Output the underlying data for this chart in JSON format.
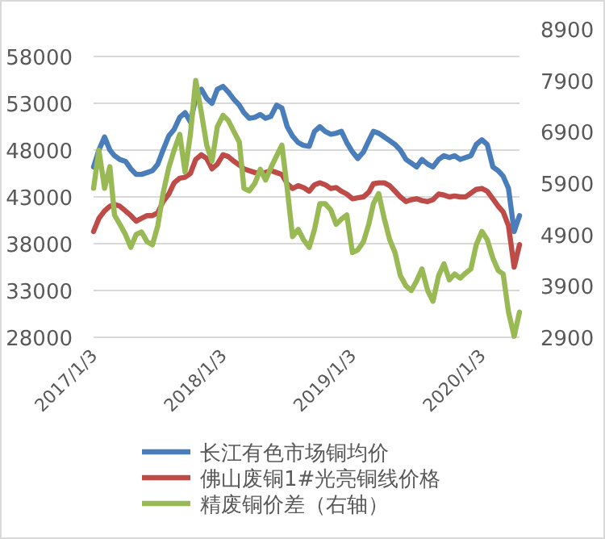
{
  "chart_data": {
    "type": "line",
    "x": [
      "2017-01-03",
      "2017-01-18",
      "2017-02-03",
      "2017-02-18",
      "2017-03-03",
      "2017-03-18",
      "2017-04-03",
      "2017-04-18",
      "2017-05-03",
      "2017-05-18",
      "2017-06-03",
      "2017-06-18",
      "2017-07-03",
      "2017-07-18",
      "2017-08-03",
      "2017-08-18",
      "2017-09-03",
      "2017-09-18",
      "2017-10-03",
      "2017-10-18",
      "2017-11-03",
      "2017-11-18",
      "2017-12-03",
      "2017-12-18",
      "2018-01-03",
      "2018-01-18",
      "2018-02-03",
      "2018-02-18",
      "2018-03-03",
      "2018-03-18",
      "2018-04-03",
      "2018-04-18",
      "2018-05-03",
      "2018-05-18",
      "2018-06-03",
      "2018-06-18",
      "2018-07-03",
      "2018-07-18",
      "2018-08-03",
      "2018-08-18",
      "2018-09-03",
      "2018-09-18",
      "2018-10-03",
      "2018-10-18",
      "2018-11-03",
      "2018-11-18",
      "2018-12-03",
      "2018-12-18",
      "2019-01-03",
      "2019-01-18",
      "2019-02-03",
      "2019-02-18",
      "2019-03-03",
      "2019-03-18",
      "2019-04-03",
      "2019-04-18",
      "2019-05-03",
      "2019-05-18",
      "2019-06-03",
      "2019-06-18",
      "2019-07-03",
      "2019-07-18",
      "2019-08-03",
      "2019-08-18",
      "2019-09-03",
      "2019-09-18",
      "2019-10-03",
      "2019-10-18",
      "2019-11-03",
      "2019-11-18",
      "2019-12-03",
      "2019-12-18",
      "2020-01-03",
      "2020-01-18",
      "2020-02-03",
      "2020-02-18",
      "2020-03-03",
      "2020-03-18",
      "2020-04-03",
      "2020-04-18"
    ],
    "series": [
      {
        "name": "长江有色市场铜均价",
        "color": "#4a7ebb",
        "values": [
          46200,
          48000,
          49400,
          48000,
          47400,
          47000,
          46800,
          46000,
          45400,
          45400,
          45600,
          45800,
          46500,
          48000,
          49500,
          50200,
          51500,
          52000,
          51000,
          53500,
          54500,
          53500,
          53000,
          54500,
          54800,
          54200,
          53400,
          52800,
          52000,
          51400,
          51500,
          51800,
          51400,
          51600,
          52800,
          52500,
          50500,
          49500,
          48800,
          48500,
          48400,
          50000,
          50500,
          50000,
          49700,
          49800,
          50000,
          48800,
          47800,
          47100,
          47800,
          49000,
          50000,
          49800,
          49400,
          49000,
          48600,
          48000,
          47000,
          46600,
          46200,
          47000,
          46500,
          46200,
          47000,
          47400,
          47200,
          47400,
          47000,
          47200,
          47400,
          48600,
          49100,
          48600,
          46200,
          45800,
          45200,
          43900,
          39300,
          41000
        ]
      },
      {
        "name": "佛山废铜1#光亮铜线价格",
        "color": "#be4b48",
        "values": [
          39300,
          40700,
          41500,
          42000,
          42200,
          42000,
          41500,
          41000,
          40400,
          40700,
          41000,
          41000,
          41300,
          42500,
          43300,
          44500,
          45000,
          45100,
          45500,
          47000,
          47500,
          47100,
          46000,
          46500,
          47500,
          47300,
          46800,
          46400,
          46000,
          45800,
          45600,
          45600,
          45600,
          45800,
          45600,
          45400,
          44400,
          43900,
          44200,
          44000,
          43600,
          44300,
          44500,
          44300,
          43900,
          44000,
          43600,
          43300,
          42800,
          42900,
          43000,
          43500,
          44400,
          44500,
          44500,
          44200,
          43600,
          43000,
          42500,
          42700,
          42800,
          42600,
          42500,
          42700,
          43300,
          43200,
          43000,
          43100,
          43000,
          43000,
          43400,
          43800,
          43900,
          43600,
          42800,
          42000,
          41400,
          39900,
          35500,
          37900
        ]
      },
      {
        "name": "精废铜价差（右轴）",
        "color": "#98b954",
        "axis": "y2",
        "values": [
          5800,
          6540,
          5800,
          6220,
          5280,
          5100,
          4900,
          4650,
          4900,
          4950,
          4760,
          4700,
          5070,
          5700,
          6200,
          6540,
          6850,
          6120,
          6850,
          7900,
          7270,
          6640,
          6330,
          7000,
          7220,
          7120,
          6900,
          6700,
          5800,
          5750,
          5900,
          6170,
          5960,
          6200,
          6430,
          6640,
          5800,
          4860,
          5000,
          4800,
          4650,
          5000,
          5500,
          5500,
          5380,
          5100,
          5200,
          5280,
          4550,
          4600,
          4760,
          5100,
          5500,
          5700,
          5200,
          4800,
          4550,
          4100,
          3900,
          3810,
          4000,
          4230,
          3810,
          3600,
          4100,
          4330,
          4020,
          4130,
          4050,
          4150,
          4230,
          4700,
          4960,
          4800,
          4440,
          4200,
          4130,
          3390,
          2920,
          3390
        ]
      }
    ],
    "xlim": [
      "2017-01-03",
      "2020-04-18"
    ],
    "xticks": [
      {
        "value": "2017-01-03",
        "label": "2017/1/3"
      },
      {
        "value": "2018-01-03",
        "label": "2018/1/3"
      },
      {
        "value": "2019-01-03",
        "label": "2019/1/3"
      },
      {
        "value": "2020-01-03",
        "label": "2020/1/3"
      }
    ],
    "ylim": [
      28000,
      58000
    ],
    "yticks": [
      28000,
      33000,
      38000,
      43000,
      48000,
      53000,
      58000
    ],
    "y2lim": [
      2900,
      8900
    ],
    "y2ticks": [
      2900,
      3900,
      4900,
      5900,
      6900,
      7900,
      8900
    ],
    "grid": "y",
    "legend": "bottom",
    "line_style": "solid",
    "marker": "none"
  }
}
